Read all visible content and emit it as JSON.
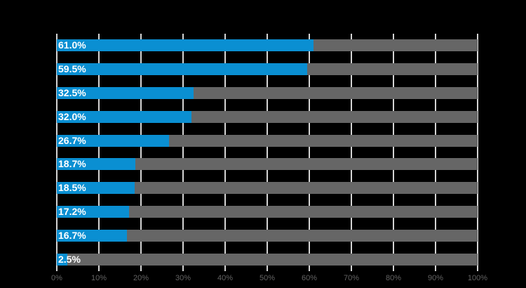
{
  "chart_data": {
    "type": "bar",
    "orientation": "horizontal",
    "values": [
      61.0,
      59.5,
      32.5,
      32.0,
      26.7,
      18.7,
      18.5,
      17.2,
      16.7,
      2.5
    ],
    "value_labels": [
      "61.0%",
      "59.5%",
      "32.5%",
      "32.0%",
      "26.7%",
      "18.7%",
      "18.5%",
      "17.2%",
      "16.7%",
      "2.5%"
    ],
    "x_ticks": [
      "0%",
      "10%",
      "20%",
      "30%",
      "40%",
      "50%",
      "60%",
      "70%",
      "80%",
      "90%",
      "100%"
    ],
    "xlim": [
      0,
      100
    ],
    "grid": "vertical-only",
    "legend": "none",
    "title": "",
    "track_full_scale": true
  },
  "colors": {
    "background": "#000000",
    "bar_fill": "#0a8fd2",
    "bar_track": "#666666",
    "gridline": "#d4d4d4",
    "axis_text": "#626262",
    "value_label_text": "#ffffff"
  }
}
